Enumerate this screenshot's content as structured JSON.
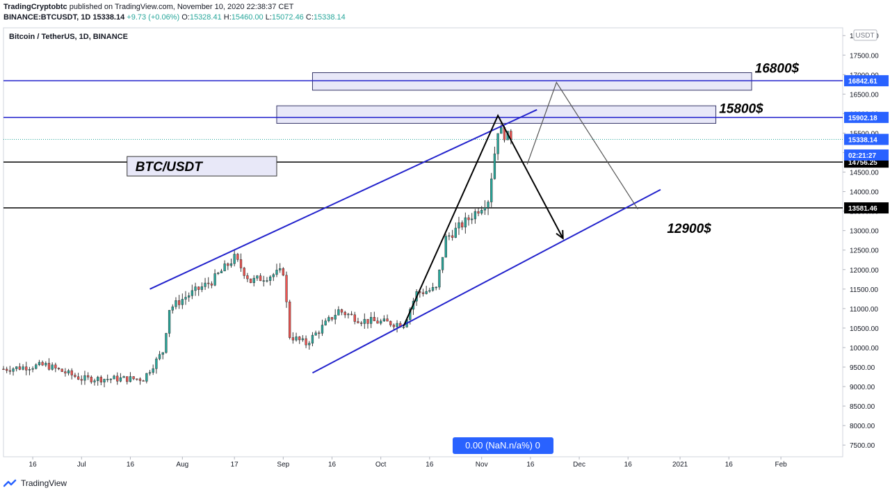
{
  "header": {
    "author": "TradingCryptobtc",
    "published_text": "published on TradingView.com, November 10, 2020 22:38:37 CET",
    "symbol": "BINANCE:BTCUSDT, 1D",
    "last": "15338.14",
    "change": "+9.73 (+0.06%)",
    "o_label": "O:",
    "o_value": "15328.41",
    "h_label": "H:",
    "h_value": "15460.00",
    "l_label": "L:",
    "l_value": "15072.46",
    "c_label": "C:",
    "c_value": "15338.14"
  },
  "chart_title": "Bitcoin / TetherUS, 1D, BINANCE",
  "currency_badge": "USDT",
  "countdown": "02:21:27",
  "bottom_indicator": "0.00 (NaN.n/a%) 0",
  "footer_brand": "TradingView",
  "colors": {
    "up": "#26a69a",
    "down": "#ef5350",
    "channel": "#2222cc",
    "zone_fill": "#e8e8f8",
    "black_line": "#000000",
    "price_blue": "#2962ff"
  },
  "chart_data": {
    "type": "candlestick",
    "symbol": "BTC/USDT",
    "y_axis": {
      "min": 7200,
      "max": 18200,
      "scale": "linear",
      "ticks": [
        7500,
        8000,
        8500,
        9000,
        9500,
        10000,
        10500,
        11000,
        11500,
        12000,
        12500,
        13000,
        13500,
        14000,
        14500,
        15000,
        15500,
        16000,
        16500,
        17000,
        17500,
        18000
      ],
      "tick_labels": [
        "7500.00",
        "8000.00",
        "8500.00",
        "9000.00",
        "9500.00",
        "10000.00",
        "10500.00",
        "11000.00",
        "11500.00",
        "12000.00",
        "12500.00",
        "13000.00",
        "13500.00",
        "14000.00",
        "14500.00",
        "15000.00",
        "15500.00",
        "16000.00",
        "16500.00",
        "17000.00",
        "17500.00",
        "18000.00"
      ]
    },
    "x_axis": {
      "start_date": "2020-06-07",
      "end_date": "2021-02-20",
      "ticks": [
        {
          "date": "2020-06-16",
          "label": "16"
        },
        {
          "date": "2020-07-01",
          "label": "Jul"
        },
        {
          "date": "2020-07-16",
          "label": "16"
        },
        {
          "date": "2020-08-01",
          "label": "Aug"
        },
        {
          "date": "2020-08-17",
          "label": "17"
        },
        {
          "date": "2020-09-01",
          "label": "Sep"
        },
        {
          "date": "2020-09-16",
          "label": "16"
        },
        {
          "date": "2020-10-01",
          "label": "Oct"
        },
        {
          "date": "2020-10-16",
          "label": "16"
        },
        {
          "date": "2020-11-01",
          "label": "Nov"
        },
        {
          "date": "2020-11-16",
          "label": "16"
        },
        {
          "date": "2020-12-01",
          "label": "Dec"
        },
        {
          "date": "2020-12-16",
          "label": "16"
        },
        {
          "date": "2021-01-01",
          "label": "2021"
        },
        {
          "date": "2021-01-16",
          "label": "16"
        },
        {
          "date": "2021-02-01",
          "label": "Feb"
        }
      ]
    },
    "series": [
      {
        "name": "BTCUSDT",
        "keypoints": [
          {
            "date": "2020-06-07",
            "close": 9450
          },
          {
            "date": "2020-06-20",
            "close": 9550
          },
          {
            "date": "2020-07-01",
            "close": 9200
          },
          {
            "date": "2020-07-20",
            "close": 9200
          },
          {
            "date": "2020-07-26",
            "close": 9900
          },
          {
            "date": "2020-07-28",
            "close": 11000
          },
          {
            "date": "2020-08-02",
            "close": 11300
          },
          {
            "date": "2020-08-10",
            "close": 11700
          },
          {
            "date": "2020-08-17",
            "close": 12300
          },
          {
            "date": "2020-08-22",
            "close": 11700
          },
          {
            "date": "2020-09-01",
            "close": 11950
          },
          {
            "date": "2020-09-03",
            "close": 10300
          },
          {
            "date": "2020-09-08",
            "close": 10100
          },
          {
            "date": "2020-09-18",
            "close": 10950
          },
          {
            "date": "2020-09-25",
            "close": 10700
          },
          {
            "date": "2020-10-08",
            "close": 10600
          },
          {
            "date": "2020-10-12",
            "close": 11400
          },
          {
            "date": "2020-10-18",
            "close": 11500
          },
          {
            "date": "2020-10-21",
            "close": 12800
          },
          {
            "date": "2020-10-28",
            "close": 13300
          },
          {
            "date": "2020-11-03",
            "close": 13800
          },
          {
            "date": "2020-11-06",
            "close": 15600
          },
          {
            "date": "2020-11-10",
            "close": 15338
          }
        ]
      }
    ],
    "last_price": 15338.14,
    "horizontal_levels": [
      {
        "price": 16842.61,
        "label": "16842.61",
        "color": "#2222cc"
      },
      {
        "price": 15902.18,
        "label": "15902.18",
        "color": "#2222cc"
      },
      {
        "price": 14756.25,
        "label": "14756.25",
        "color": "#000000"
      },
      {
        "price": 13581.46,
        "label": "13581.46",
        "color": "#000000"
      }
    ],
    "zones": [
      {
        "from": "2020-09-10",
        "to": "2021-01-23",
        "top": 17050,
        "bottom": 16600
      },
      {
        "from": "2020-08-30",
        "to": "2021-01-12",
        "top": 16200,
        "bottom": 15750
      }
    ],
    "channel_lines": [
      {
        "start": {
          "date": "2020-07-22",
          "price": 11500
        },
        "end": {
          "date": "2020-11-18",
          "price": 16100
        }
      },
      {
        "start": {
          "date": "2020-09-10",
          "price": 9350
        },
        "end": {
          "date": "2020-12-26",
          "price": 14050
        }
      }
    ],
    "path_arrows": [
      {
        "points": [
          {
            "date": "2020-10-08",
            "price": 10550
          },
          {
            "date": "2020-11-06",
            "price": 15950
          },
          {
            "date": "2020-11-26",
            "price": 12800
          }
        ],
        "color": "#000000",
        "arrow_end": true
      },
      {
        "points": [
          {
            "date": "2020-11-15",
            "price": 14700
          },
          {
            "date": "2020-11-24",
            "price": 16800
          },
          {
            "date": "2020-12-19",
            "price": 13550
          }
        ],
        "color": "#555555",
        "arrow_end": false
      }
    ],
    "text_annotations": [
      {
        "text": "16800$",
        "date": "2021-01-24",
        "price": 17050
      },
      {
        "text": "15800$",
        "date": "2021-01-13",
        "price": 16020
      },
      {
        "text": "12900$",
        "date": "2020-12-28",
        "price": 12940
      }
    ],
    "symbol_box": {
      "text": "BTC/USDT",
      "from": "2020-07-15",
      "to": "2020-08-30",
      "top": 14900,
      "bottom": 14400
    }
  }
}
